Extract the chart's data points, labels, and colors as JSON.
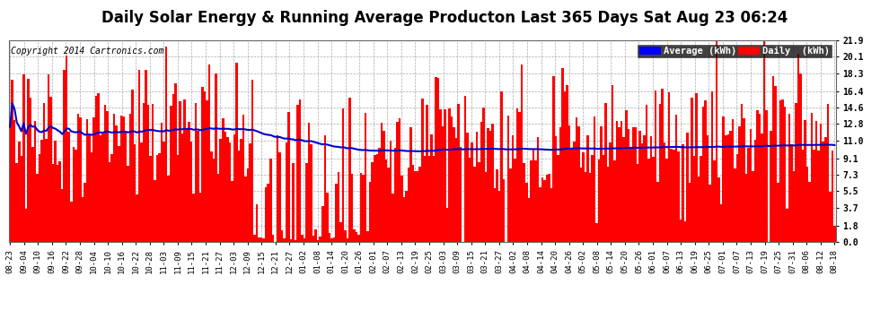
{
  "title": "Daily Solar Energy & Running Average Producton Last 365 Days Sat Aug 23 06:24",
  "copyright": "Copyright 2014 Cartronics.com",
  "yticks": [
    0.0,
    1.8,
    3.7,
    5.5,
    7.3,
    9.1,
    11.0,
    12.8,
    14.6,
    16.4,
    18.3,
    20.1,
    21.9
  ],
  "ymax": 21.9,
  "ymin": 0.0,
  "bar_color": "#FF0000",
  "avg_line_color": "#0000CC",
  "bg_color": "#FFFFFF",
  "plot_bg_color": "#FFFFFF",
  "grid_color": "#AAAAAA",
  "legend_avg_bg": "#0000FF",
  "legend_daily_bg": "#FF0000",
  "title_fontsize": 12,
  "n_days": 365,
  "xtick_labels": [
    "08-23",
    "09-04",
    "09-10",
    "09-16",
    "09-22",
    "09-28",
    "10-04",
    "10-10",
    "10-16",
    "10-22",
    "10-28",
    "11-03",
    "11-09",
    "11-15",
    "11-21",
    "11-27",
    "12-03",
    "12-09",
    "12-15",
    "12-21",
    "12-27",
    "01-02",
    "01-08",
    "01-14",
    "01-20",
    "01-26",
    "02-01",
    "02-07",
    "02-13",
    "02-19",
    "02-25",
    "03-03",
    "03-09",
    "03-15",
    "03-21",
    "03-27",
    "04-02",
    "04-08",
    "04-14",
    "04-20",
    "04-26",
    "05-02",
    "05-08",
    "05-14",
    "05-20",
    "05-26",
    "06-01",
    "06-07",
    "06-13",
    "06-19",
    "06-25",
    "07-01",
    "07-07",
    "07-13",
    "07-19",
    "07-25",
    "07-31",
    "08-06",
    "08-12",
    "08-18"
  ]
}
